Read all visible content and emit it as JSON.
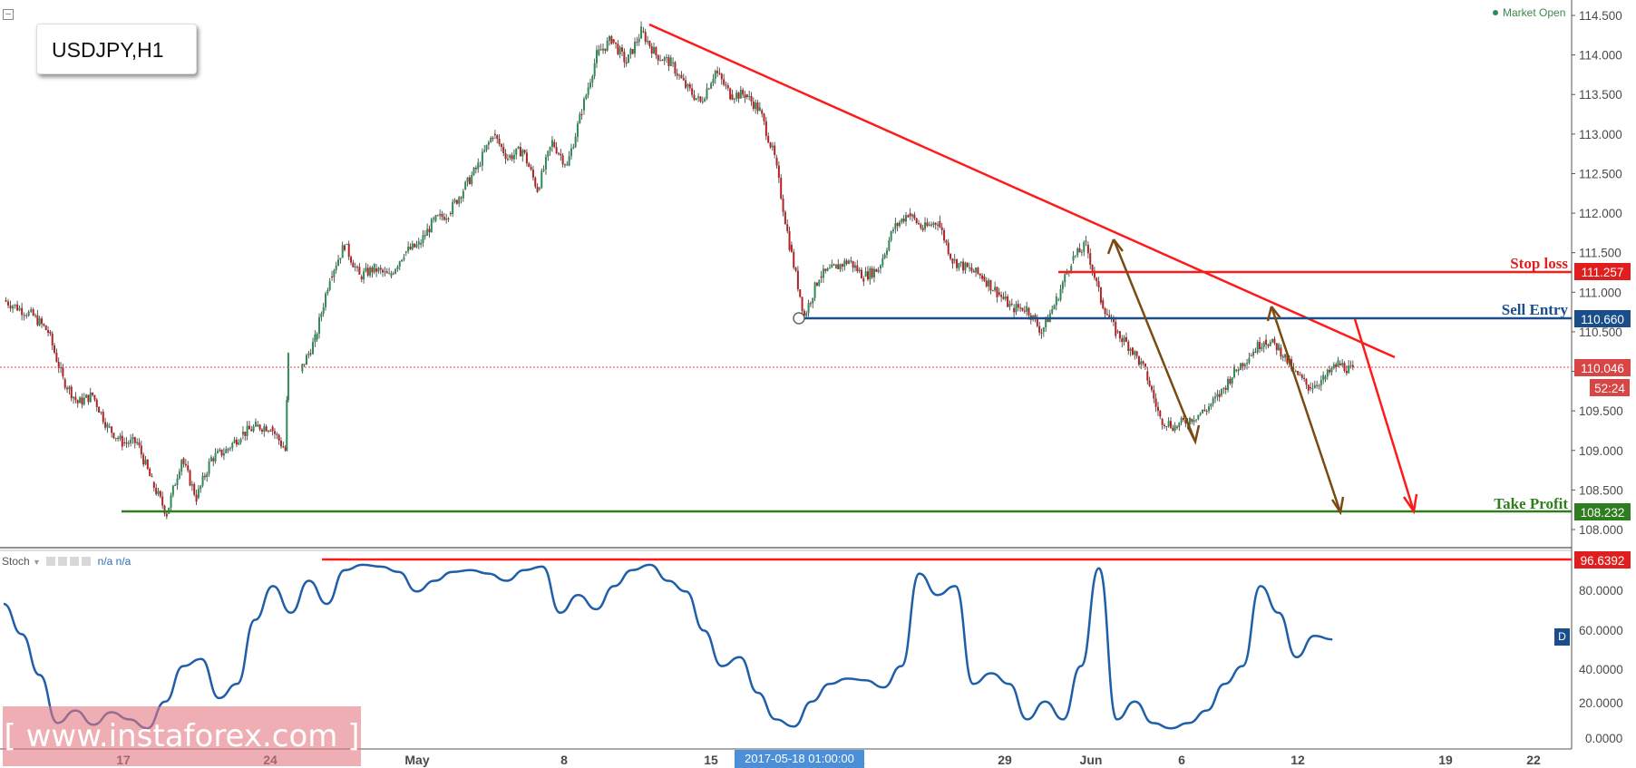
{
  "header": {
    "symbol": "USDJPY,H1",
    "market_status": "Market Open"
  },
  "watermark": "[ www.instaforex.com ]",
  "crosshair_date": "2017-05-18 01:00:00",
  "stoch_panel": {
    "label": "Stoch",
    "values": "n/a n/a",
    "badge": "D"
  },
  "colors": {
    "up": "#2e8b57",
    "down": "#b22222",
    "trend": "#ff1a1a",
    "entry": "#1a4e8a",
    "target": "#2e7d1f",
    "oscillator": "#1f5ea8",
    "arrow": "#7a4a12"
  },
  "chart_data": {
    "type": "candlestick",
    "price_axis": {
      "ticks": [
        "114.500",
        "114.000",
        "113.500",
        "113.000",
        "112.500",
        "112.000",
        "111.500",
        "111.000",
        "110.500",
        "110.000",
        "109.500",
        "109.000",
        "108.500",
        "108.000"
      ],
      "range": [
        107.95,
        114.6
      ]
    },
    "time_axis": {
      "ticks": [
        "17",
        "24",
        "May",
        "8",
        "15",
        "22",
        "29",
        "Jun",
        "6",
        "12",
        "19",
        "22"
      ]
    },
    "levels": [
      {
        "name": "Stop loss",
        "value": "111.257"
      },
      {
        "name": "Sell Entry",
        "value": "110.660"
      },
      {
        "name": "Take Profit",
        "value": "108.232"
      }
    ],
    "current_price": "110.046",
    "countdown": "52:24",
    "price_path": [
      [
        0,
        110.9
      ],
      [
        2,
        110.7
      ],
      [
        3,
        110.5
      ],
      [
        4,
        109.9
      ],
      [
        5,
        109.6
      ],
      [
        6,
        109.7
      ],
      [
        7,
        109.3
      ],
      [
        8,
        109.1
      ],
      [
        9,
        109.1
      ],
      [
        10,
        108.6
      ],
      [
        11,
        108.2
      ],
      [
        12,
        108.9
      ],
      [
        13,
        108.4
      ],
      [
        14,
        108.9
      ],
      [
        15,
        109.0
      ],
      [
        16,
        109.2
      ],
      [
        17,
        109.3
      ],
      [
        18,
        109.3
      ],
      [
        19,
        109.0
      ],
      [
        19.2,
        110.2
      ],
      [
        20,
        110.0
      ],
      [
        21,
        110.4
      ],
      [
        22,
        111.2
      ],
      [
        23,
        111.6
      ],
      [
        24,
        111.2
      ],
      [
        25,
        111.3
      ],
      [
        26,
        111.2
      ],
      [
        27,
        111.5
      ],
      [
        28,
        111.6
      ],
      [
        29,
        111.9
      ],
      [
        30,
        112.0
      ],
      [
        31,
        112.3
      ],
      [
        32,
        112.6
      ],
      [
        33,
        113.0
      ],
      [
        34,
        112.7
      ],
      [
        35,
        112.8
      ],
      [
        36,
        112.3
      ],
      [
        37,
        112.9
      ],
      [
        38,
        112.6
      ],
      [
        39,
        113.3
      ],
      [
        40,
        114.0
      ],
      [
        41,
        114.2
      ],
      [
        42,
        113.9
      ],
      [
        43,
        114.3
      ],
      [
        44,
        114.0
      ],
      [
        45,
        113.9
      ],
      [
        46,
        113.6
      ],
      [
        47,
        113.4
      ],
      [
        48,
        113.8
      ],
      [
        49,
        113.5
      ],
      [
        50,
        113.5
      ],
      [
        51,
        113.3
      ],
      [
        52,
        112.7
      ],
      [
        53,
        111.6
      ],
      [
        54,
        110.7
      ],
      [
        55,
        111.2
      ],
      [
        56,
        111.3
      ],
      [
        57,
        111.4
      ],
      [
        58,
        111.2
      ],
      [
        59,
        111.3
      ],
      [
        60,
        111.8
      ],
      [
        61,
        112.0
      ],
      [
        62,
        111.8
      ],
      [
        63,
        111.9
      ],
      [
        64,
        111.4
      ],
      [
        65,
        111.3
      ],
      [
        66,
        111.2
      ],
      [
        67,
        111.0
      ],
      [
        68,
        110.8
      ],
      [
        69,
        110.8
      ],
      [
        70,
        110.5
      ],
      [
        71,
        110.9
      ],
      [
        72,
        111.4
      ],
      [
        73,
        111.6
      ],
      [
        74,
        110.9
      ],
      [
        75,
        110.5
      ],
      [
        76,
        110.3
      ],
      [
        77,
        110.0
      ],
      [
        78,
        109.4
      ],
      [
        79,
        109.3
      ],
      [
        80,
        109.4
      ],
      [
        81,
        109.5
      ],
      [
        82,
        109.7
      ],
      [
        83,
        110.0
      ],
      [
        84,
        110.2
      ],
      [
        85,
        110.4
      ],
      [
        86,
        110.3
      ],
      [
        87,
        110.0
      ],
      [
        88,
        109.8
      ],
      [
        89,
        109.9
      ],
      [
        90,
        110.1
      ],
      [
        91,
        110.0
      ]
    ]
  }
}
